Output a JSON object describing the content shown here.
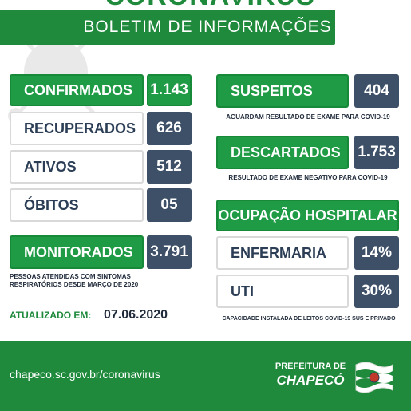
{
  "header": {
    "top_title": "CORONAVIRUS",
    "banner_title": "BOLETIM DE INFORMAÇÕES"
  },
  "left": {
    "confirmados": {
      "label": "CONFIRMADOS",
      "value": "1.143"
    },
    "recuperados": {
      "label": "RECUPERADOS",
      "value": "626"
    },
    "ativos": {
      "label": "ATIVOS",
      "value": "512"
    },
    "obitos": {
      "label": "ÓBITOS",
      "value": "05"
    },
    "monitorados": {
      "label": "MONITORADOS",
      "value": "3.791"
    },
    "monitorados_note_1": "PESSOAS ATENDIDAS COM SINTOMAS",
    "monitorados_note_2": "RESPIRATÓRIOS DESDE MARÇO DE 2020"
  },
  "right": {
    "suspeitos": {
      "label": "SUSPEITOS",
      "value": "404"
    },
    "suspeitos_note": "AGUARDAM RESULTADO DE EXAME PARA COVID-19",
    "descartados": {
      "label": "DESCARTADOS",
      "value": "1.753"
    },
    "descartados_note": "RESULTADO DE EXAME NEGATIVO PARA COVID-19",
    "ocupacao_title": "OCUPAÇÃO HOSPITALAR",
    "enfermaria": {
      "label": "ENFERMARIA",
      "value": "14%"
    },
    "uti": {
      "label": "UTI",
      "value": "30%"
    },
    "capacidade_note": "CAPACIDADE INSTALADA DE LEITOS COVID-19 SUS E PRIVADO"
  },
  "updated": {
    "label": "ATUALIZADO EM:",
    "date": "07.06.2020"
  },
  "footer": {
    "url": "chapeco.sc.gov.br/coronavirus",
    "logo_line1": "PREFEITURA DE",
    "logo_line2": "CHAPECÓ"
  },
  "colors": {
    "green": "#1f9a45",
    "slate": "#3e5068",
    "dark_green": "#1f8a3c"
  },
  "icons": {
    "background": "virus-icon",
    "flag": "city-flag-icon"
  }
}
